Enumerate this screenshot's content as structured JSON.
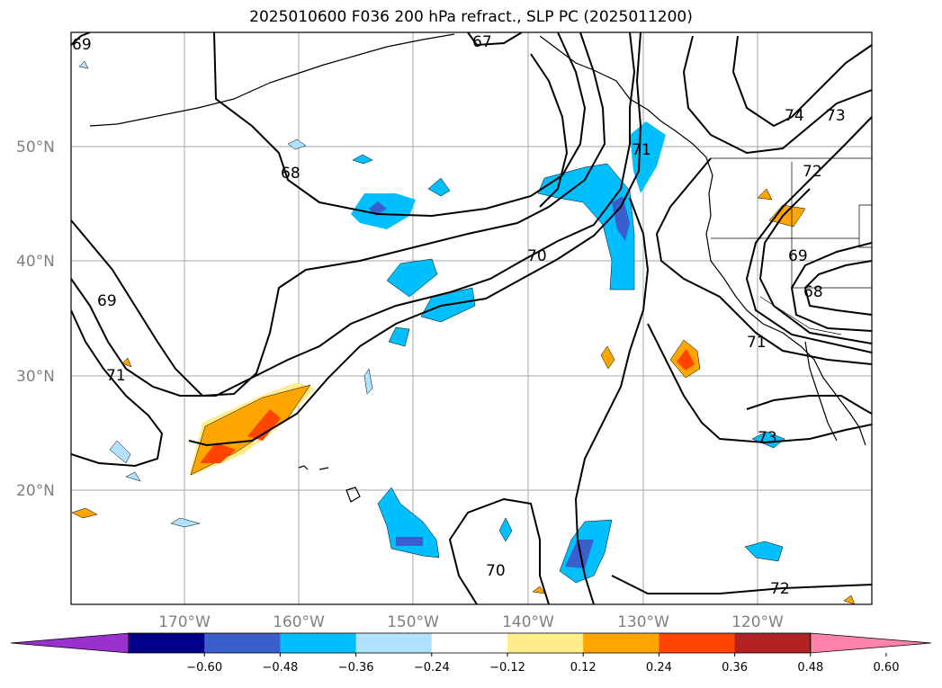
{
  "title": "2025010600 F036 200 hPa refract., SLP PC (2025011200)",
  "latitude_labels": [
    "50°N",
    "40°N",
    "30°N",
    "20°N"
  ],
  "longitude_labels": [
    "170°W",
    "160°W",
    "150°W",
    "140°W",
    "130°W",
    "120°W"
  ],
  "contour_labels": [
    "69",
    "67",
    "74",
    "73",
    "68",
    "71",
    "72",
    "70",
    "69",
    "69",
    "68",
    "71",
    "71",
    "73",
    "70",
    "72"
  ],
  "colorbar": {
    "ticks": [
      "−0.60",
      "−0.48",
      "−0.36",
      "−0.24",
      "−0.12",
      "0.12",
      "0.24",
      "0.36",
      "0.48",
      "0.60"
    ],
    "colors": [
      "#9932cc",
      "#00008b",
      "#3a5fcd",
      "#00bfff",
      "#b0e2ff",
      "#ffffff",
      "#ffec8b",
      "#ffa500",
      "#ff4500",
      "#b22222",
      "#ff82ab"
    ]
  }
}
